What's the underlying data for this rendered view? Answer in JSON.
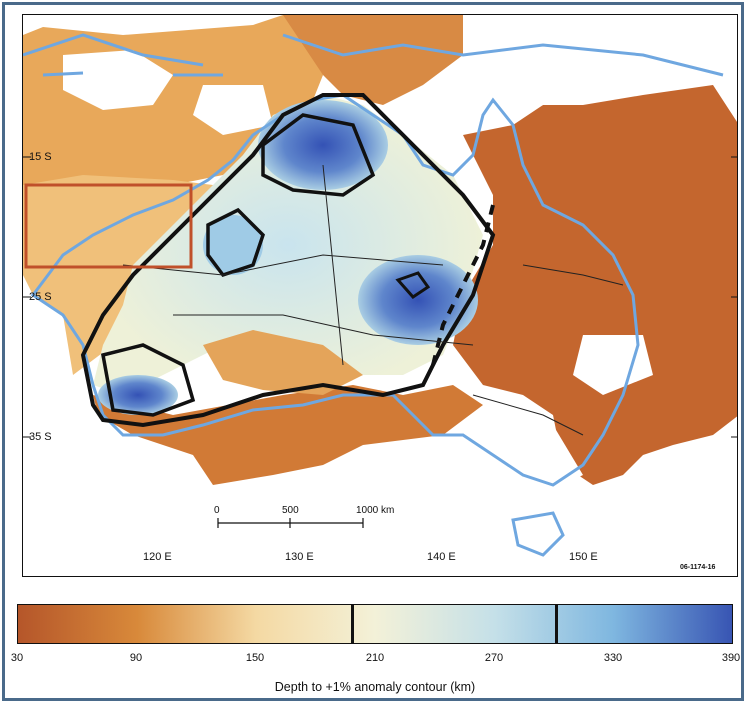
{
  "map": {
    "latitude_labels": [
      "15 S",
      "25 S",
      "35 S"
    ],
    "longitude_labels": [
      "120 E",
      "130 E",
      "140 E",
      "150 E"
    ],
    "scale_bar": {
      "labels": [
        "0",
        "500",
        "1000 km"
      ]
    },
    "figure_id": "06-1174-16"
  },
  "colorbar": {
    "ticks": [
      "30",
      "90",
      "150",
      "210",
      "270",
      "330",
      "390"
    ],
    "title": "Depth to +1% anomaly contour (km)",
    "gradient_colors": [
      "#b5562a",
      "#d8893a",
      "#f4d9a3",
      "#f3f1d8",
      "#c5e0e8",
      "#7fb7e0",
      "#3855b3"
    ],
    "boundaries": [
      "200",
      "300"
    ]
  },
  "colors": {
    "coastline": "#6fa7e0",
    "contour": "#111111",
    "box": "#c0502a"
  }
}
